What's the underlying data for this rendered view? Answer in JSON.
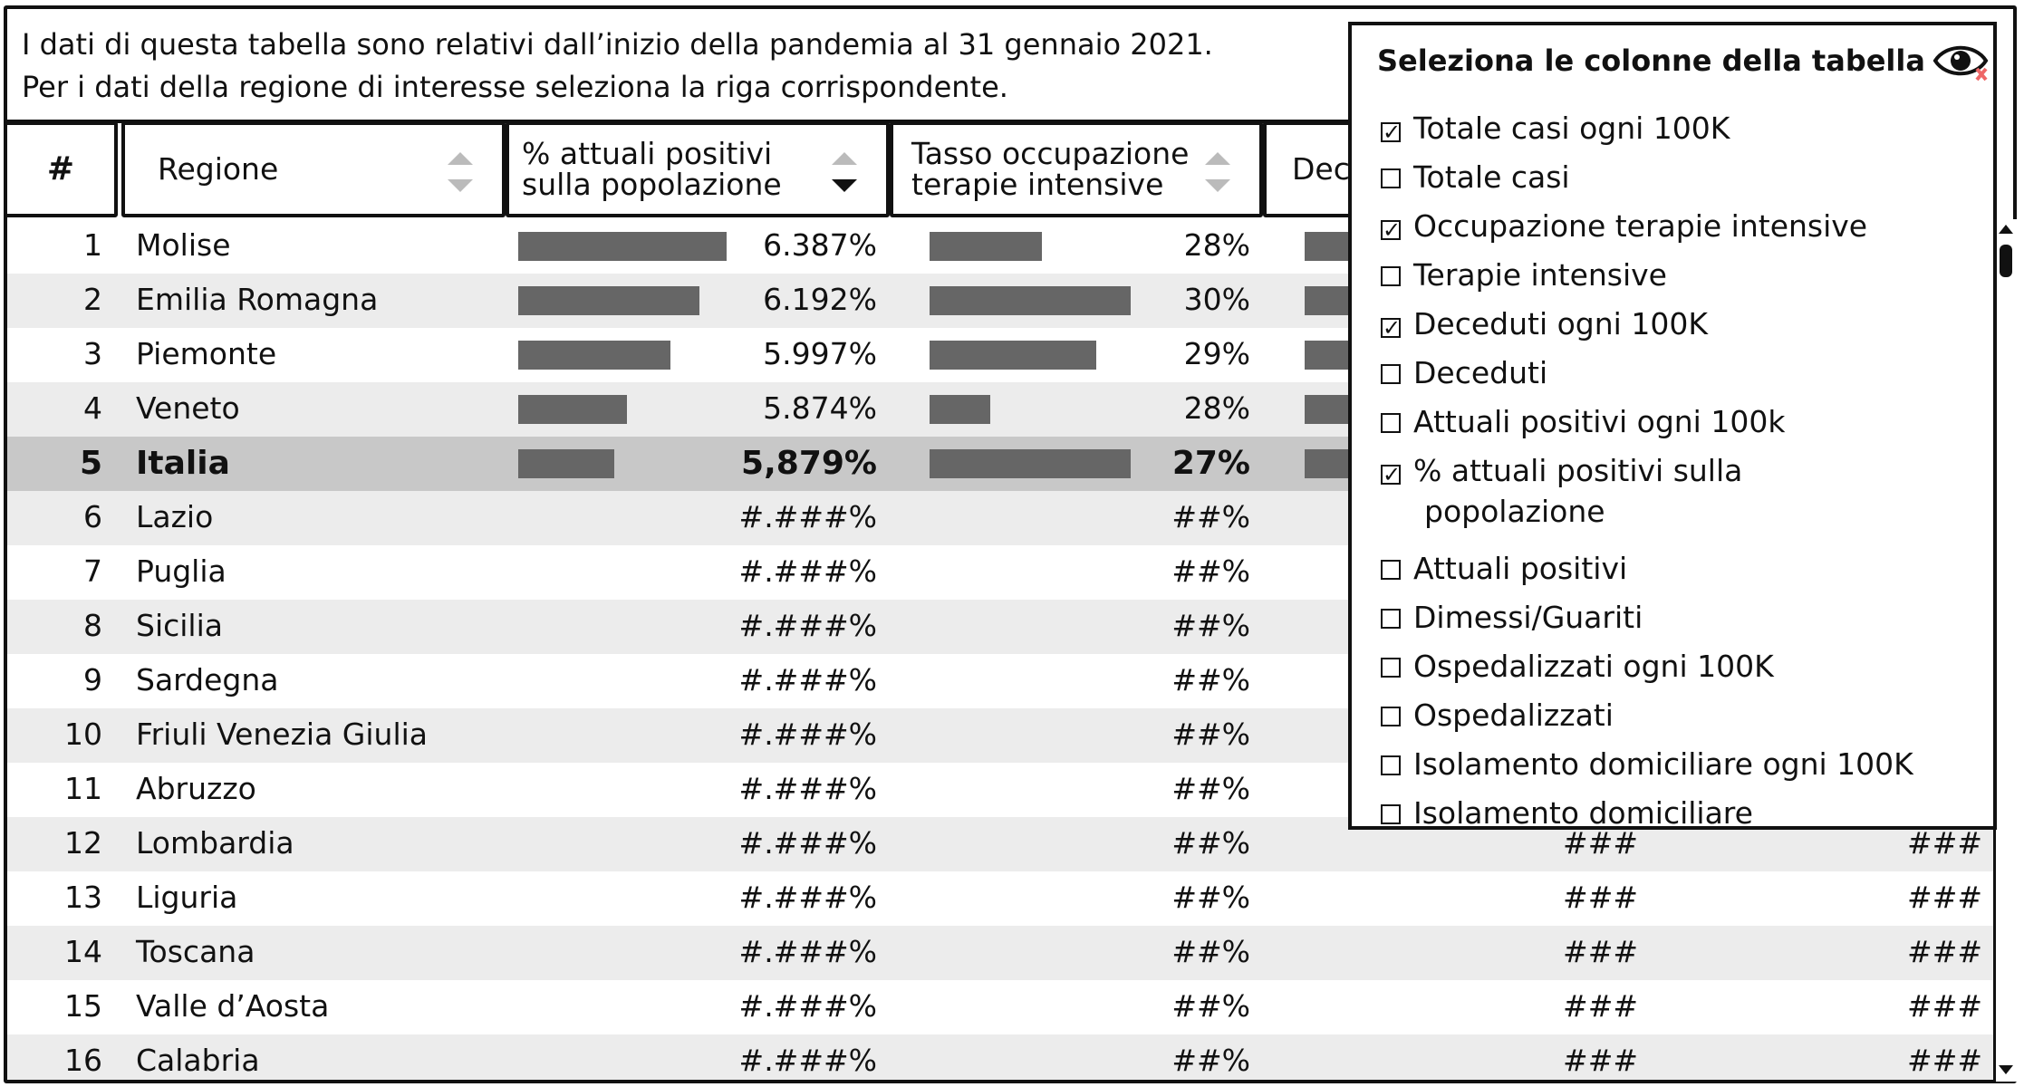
{
  "info": {
    "line1": "I dati di questa tabella sono relativi dall’inizio della pandemia al 31 gennaio 2021.",
    "line2": "Per i dati della regione di interesse seleziona la riga corrispondente."
  },
  "header": {
    "num": "#",
    "regione": "Regione",
    "pos_line1": "% attuali positivi",
    "pos_line2": "sulla popolazione",
    "ti_line1": "Tasso occupazione",
    "ti_line2": "terapie intensive",
    "dec": "Dec"
  },
  "rows": [
    {
      "n": "1",
      "regione": "Molise",
      "pos": "6.387%",
      "pos_fill": 1.0,
      "ti": "28%",
      "ti_fill": 0.56,
      "dec": "",
      "dec2": ""
    },
    {
      "n": "2",
      "regione": "Emilia Romagna",
      "pos": "6.192%",
      "pos_fill": 0.87,
      "ti": "30%",
      "ti_fill": 1.0,
      "dec": "",
      "dec2": ""
    },
    {
      "n": "3",
      "regione": "Piemonte",
      "pos": "5.997%",
      "pos_fill": 0.73,
      "ti": "29%",
      "ti_fill": 0.83,
      "dec": "",
      "dec2": ""
    },
    {
      "n": "4",
      "regione": "Veneto",
      "pos": "5.874%",
      "pos_fill": 0.52,
      "ti": "28%",
      "ti_fill": 0.3,
      "dec": "",
      "dec2": ""
    },
    {
      "n": "5",
      "regione": "Italia",
      "pos": "5,879%",
      "pos_fill": 0.46,
      "ti": "27%",
      "ti_fill": 1.0,
      "dec": "",
      "dec2": ""
    },
    {
      "n": "6",
      "regione": "Lazio",
      "pos": "#.###%",
      "ti": "##%",
      "dec": "",
      "dec2": ""
    },
    {
      "n": "7",
      "regione": "Puglia",
      "pos": "#.###%",
      "ti": "##%",
      "dec": "",
      "dec2": ""
    },
    {
      "n": "8",
      "regione": "Sicilia",
      "pos": "#.###%",
      "ti": "##%",
      "dec": "",
      "dec2": ""
    },
    {
      "n": "9",
      "regione": "Sardegna",
      "pos": "#.###%",
      "ti": "##%",
      "dec": "",
      "dec2": ""
    },
    {
      "n": "10",
      "regione": "Friuli Venezia Giulia",
      "pos": "#.###%",
      "ti": "##%",
      "dec": "",
      "dec2": ""
    },
    {
      "n": "11",
      "regione": "Abruzzo",
      "pos": "#.###%",
      "ti": "##%",
      "dec": "",
      "dec2": ""
    },
    {
      "n": "12",
      "regione": "Lombardia",
      "pos": "#.###%",
      "ti": "##%",
      "dec": "###",
      "dec2": "###"
    },
    {
      "n": "13",
      "regione": "Liguria",
      "pos": "#.###%",
      "ti": "##%",
      "dec": "###",
      "dec2": "###"
    },
    {
      "n": "14",
      "regione": "Toscana",
      "pos": "#.###%",
      "ti": "##%",
      "dec": "###",
      "dec2": "###"
    },
    {
      "n": "15",
      "regione": "Valle d’Aosta",
      "pos": "#.###%",
      "ti": "##%",
      "dec": "###",
      "dec2": "###"
    },
    {
      "n": "16",
      "regione": "Calabria",
      "pos": "#.###%",
      "ti": "##%",
      "dec": "###",
      "dec2": "###"
    }
  ],
  "column_picker": {
    "title": "Seleziona le colonne della tabella",
    "icon": "eye-icon",
    "items": [
      {
        "label": "Totale casi ogni 100K",
        "checked": true
      },
      {
        "label": "Totale casi",
        "checked": false
      },
      {
        "label": "Occupazione terapie intensive",
        "checked": true
      },
      {
        "label": "Terapie intensive",
        "checked": false
      },
      {
        "label": "Deceduti ogni 100K",
        "checked": true
      },
      {
        "label": "Deceduti",
        "checked": false
      },
      {
        "label": "Attuali positivi ogni 100k",
        "checked": false
      },
      {
        "label": "% attuali positivi sulla",
        "label2": "popolazione",
        "checked": true
      },
      {
        "label": "Attuali positivi",
        "checked": false
      },
      {
        "label": "Dimessi/Guariti",
        "checked": false
      },
      {
        "label": "Ospedalizzati ogni 100K",
        "checked": false
      },
      {
        "label": "Ospedalizzati",
        "checked": false
      },
      {
        "label": "Isolamento domiciliare ogni 100K",
        "checked": false
      },
      {
        "label": "Isolamento domiciliare",
        "checked": false
      }
    ]
  }
}
